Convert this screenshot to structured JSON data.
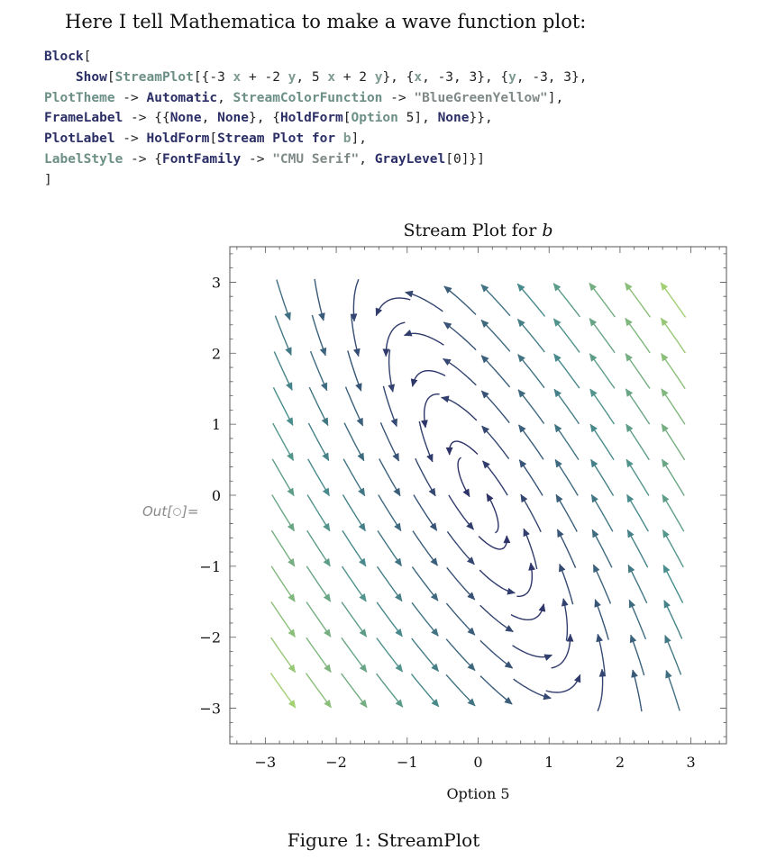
{
  "intro_text": "Here I tell Mathematica to make a wave function plot:",
  "code_lines": [
    "Block[",
    "    Show[StreamPlot[{-3 x + -2 y, 5 x + 2 y}, {x, -3, 3}, {y, -3, 3},",
    "PlotTheme -> Automatic, StreamColorFunction -> \"BlueGreenYellow\"],",
    "FrameLabel -> {{None, None}, {HoldForm[Option 5], None}},",
    "PlotLabel -> HoldForm[Stream Plot for b],",
    "LabelStyle -> {FontFamily -> \"CMU Serif\", GrayLevel[0]}]",
    "]"
  ],
  "out_label": "Out[",
  "out_label_end": "]=",
  "caption": "Figure 1: StreamPlot",
  "chart_data": {
    "type": "streamplot",
    "vector_field": {
      "vx": "-3 x + -2 y",
      "vy": "5 x + 2 y"
    },
    "x_range": [
      -3,
      3
    ],
    "y_range": [
      -3,
      3
    ],
    "plot_range_x": [
      -3.5,
      3.5
    ],
    "plot_range_y": [
      -3.5,
      3.5
    ],
    "title": "Stream Plot for b",
    "title_plain": "Stream Plot for ",
    "title_var": "b",
    "xlabel": "Option 5",
    "ylabel": "",
    "x_ticks": [
      -3,
      -2,
      -1,
      0,
      1,
      2,
      3
    ],
    "y_ticks": [
      -3,
      -2,
      -1,
      0,
      1,
      2,
      3
    ],
    "x_tick_labels": [
      "−3",
      "−2",
      "−1",
      "0",
      "1",
      "2",
      "3"
    ],
    "y_tick_labels": [
      "−3",
      "−2",
      "−1",
      "0",
      "1",
      "2",
      "3"
    ],
    "color_function": "BlueGreenYellow",
    "colors": {
      "low": "#2b2c66",
      "mid": "#4a8f8e",
      "high": "#b4dd6c"
    }
  }
}
